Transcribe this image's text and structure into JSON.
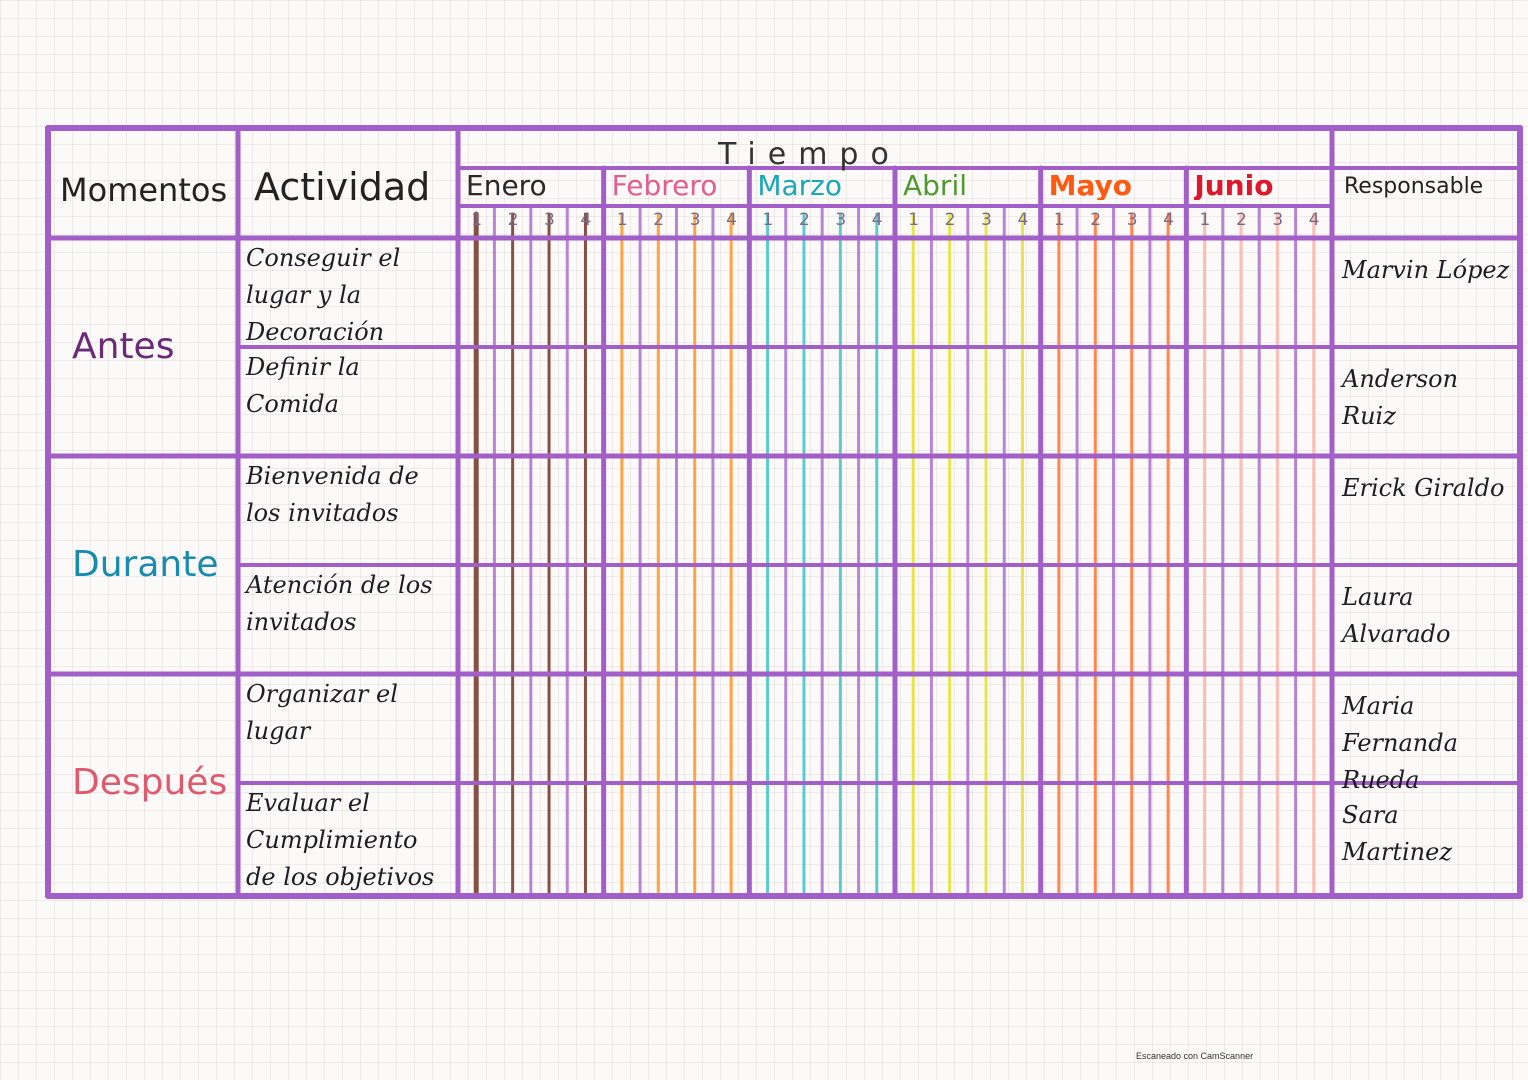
{
  "header": {
    "momentos": "Momentos",
    "actividad": "Actividad",
    "tiempo": "Tiempo",
    "responsable": "Responsable"
  },
  "months": [
    {
      "label": "Enero",
      "color": "#2a2a2a",
      "bar": "#7a3f32",
      "weight": "normal"
    },
    {
      "label": "Febrero",
      "color": "#e35d8f",
      "bar": "#ff9b2f",
      "weight": "normal"
    },
    {
      "label": "Marzo",
      "color": "#1aa7b6",
      "bar": "#4dc6c9",
      "weight": "normal"
    },
    {
      "label": "Abril",
      "color": "#4f9a2e",
      "bar": "#e6e33a",
      "weight": "normal"
    },
    {
      "label": "Mayo",
      "color": "#ff5a12",
      "bar": "#ff7a3d",
      "weight": "bold"
    },
    {
      "label": "Junio",
      "color": "#e0162b",
      "bar": "#ffb0a0",
      "weight": "bold"
    }
  ],
  "weeks": [
    "1",
    "2",
    "3",
    "4"
  ],
  "moments": [
    {
      "label": "Antes",
      "color": "#6b2a78"
    },
    {
      "label": "Durante",
      "color": "#1a8bb0"
    },
    {
      "label": "Después",
      "color": "#e05a6e"
    }
  ],
  "rows": [
    {
      "actividad": "Conseguir el lugar y la Decoración",
      "responsable": "Marvin López"
    },
    {
      "actividad": "Definir la Comida",
      "responsable": "Anderson Ruiz"
    },
    {
      "actividad": "Bienvenida de los invitados",
      "responsable": "Erick Giraldo"
    },
    {
      "actividad": "Atención de los invitados",
      "responsable": "Laura Alvarado"
    },
    {
      "actividad": "Organizar el lugar",
      "responsable": "Maria Fernanda Rueda"
    },
    {
      "actividad": "Evaluar el Cumplimiento de los objetivos",
      "responsable": "Sara Martinez"
    }
  ],
  "footer": "Escaneado con CamScanner",
  "colors": {
    "grid": "#a25fc8",
    "ink": "#1d1d24",
    "paper": "#fbfaf9"
  }
}
